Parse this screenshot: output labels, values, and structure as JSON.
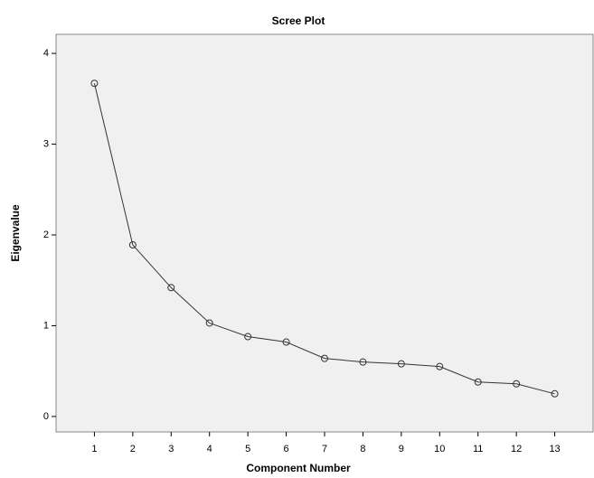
{
  "chart_data": {
    "type": "line",
    "title": "Scree Plot",
    "xlabel": "Component Number",
    "ylabel": "Eigenvalue",
    "x": [
      1,
      2,
      3,
      4,
      5,
      6,
      7,
      8,
      9,
      10,
      11,
      12,
      13
    ],
    "values": [
      3.67,
      1.89,
      1.42,
      1.03,
      0.88,
      0.82,
      0.64,
      0.6,
      0.58,
      0.55,
      0.38,
      0.36,
      0.25
    ],
    "color": "#333333",
    "xlim": [
      0,
      14
    ],
    "xticks": [
      1,
      2,
      3,
      4,
      5,
      6,
      7,
      8,
      9,
      10,
      11,
      12,
      13
    ],
    "ylim": [
      -0.17,
      4.21
    ],
    "yticks": [
      0,
      1,
      2,
      3,
      4
    ],
    "grid": false
  }
}
